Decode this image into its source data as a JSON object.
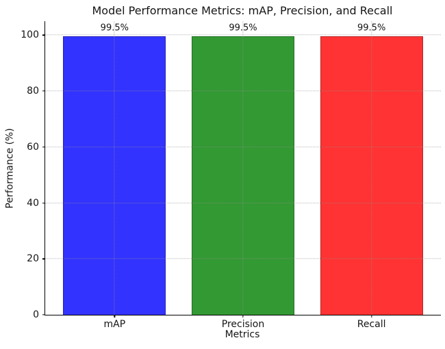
{
  "chart_data": {
    "type": "bar",
    "title": "Model Performance Metrics: mAP, Precision, and Recall",
    "xlabel": "Metrics",
    "ylabel": "Performance (%)",
    "categories": [
      "mAP",
      "Precision",
      "Recall"
    ],
    "values": [
      99.5,
      99.5,
      99.5
    ],
    "value_labels": [
      "99.5%",
      "99.5%",
      "99.5%"
    ],
    "bar_colors": [
      "#3333ff",
      "#339933",
      "#ff3333"
    ],
    "yticks": [
      0,
      20,
      40,
      60,
      80,
      100
    ],
    "ylim": [
      0,
      105
    ],
    "xlim": [
      -0.54,
      2.54
    ],
    "bar_width": 0.8,
    "grid": "dotted, both axes, drawn above bars",
    "legend": "none"
  }
}
